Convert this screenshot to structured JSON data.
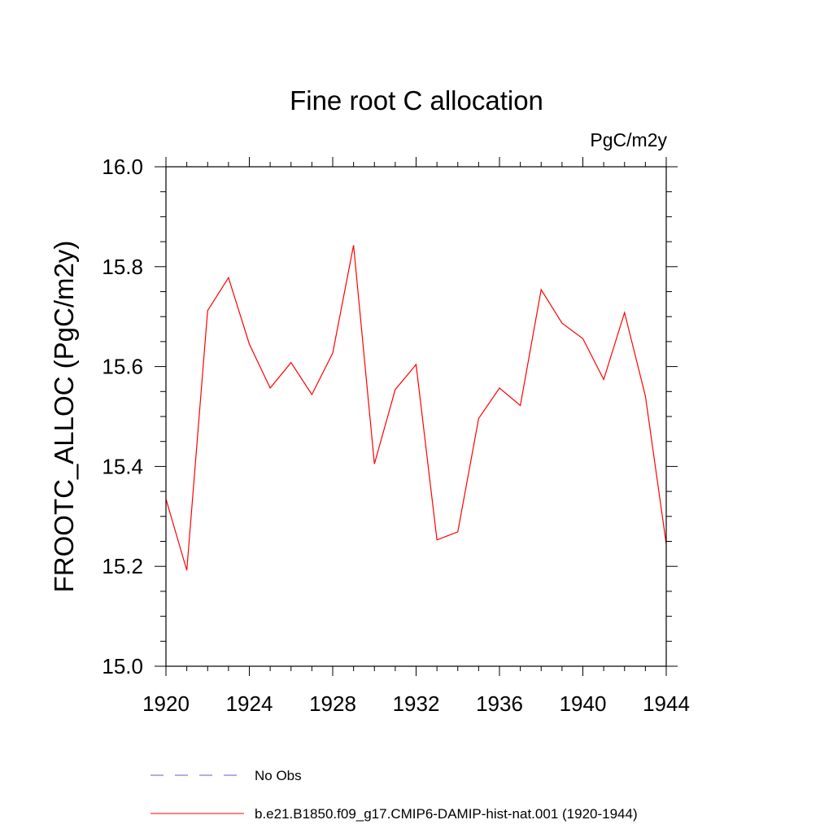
{
  "chart_data": {
    "type": "line",
    "title": "Fine root C allocation",
    "units_label": "PgC/m2y",
    "ylabel": "FROOTC_ALLOC  (PgC/m2y)",
    "xlabel": "",
    "xlim": [
      1920,
      1944
    ],
    "ylim": [
      15.0,
      16.0
    ],
    "x_ticks": [
      1920,
      1924,
      1928,
      1932,
      1936,
      1940,
      1944
    ],
    "y_ticks": [
      15.0,
      15.2,
      15.4,
      15.6,
      15.8,
      16.0
    ],
    "y_tick_labels": [
      "15.0",
      "15.2",
      "15.4",
      "15.6",
      "15.8",
      "16.0"
    ],
    "grid": false,
    "legend_position": "bottom",
    "series": [
      {
        "name": "b.e21.B1850.f09_g17.CMIP6-DAMIP-hist-nat.001 (1920-1944)",
        "color": "#ff0000",
        "style": "solid",
        "x": [
          1920,
          1921,
          1922,
          1923,
          1924,
          1925,
          1926,
          1927,
          1928,
          1929,
          1930,
          1931,
          1932,
          1933,
          1934,
          1935,
          1936,
          1937,
          1938,
          1939,
          1940,
          1941,
          1942,
          1943,
          1944
        ],
        "y": [
          15.335,
          15.192,
          15.712,
          15.778,
          15.645,
          15.557,
          15.608,
          15.544,
          15.627,
          15.843,
          15.405,
          15.554,
          15.604,
          15.253,
          15.269,
          15.496,
          15.557,
          15.522,
          15.754,
          15.687,
          15.656,
          15.574,
          15.708,
          15.541,
          15.245
        ]
      }
    ],
    "legend": [
      {
        "label": "No Obs",
        "color": "#6a5acd",
        "style": "dashed"
      },
      {
        "label": "b.e21.B1850.f09_g17.CMIP6-DAMIP-hist-nat.001 (1920-1944)",
        "color": "#ff0000",
        "style": "solid"
      }
    ]
  }
}
